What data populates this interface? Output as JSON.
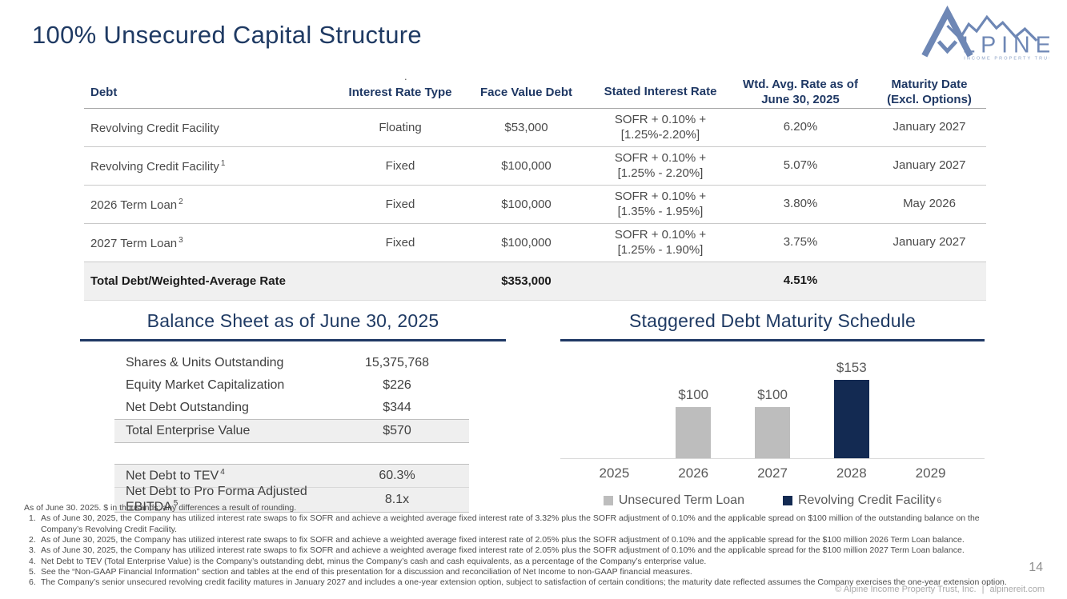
{
  "slide": {
    "title": "100% Unsecured Capital Structure",
    "page_number": "14",
    "copyright": "© Alpine Income Property Trust, Inc.",
    "copyright_divider": "|",
    "copyright_site": "alpinereit.com",
    "stray_dot": ".",
    "accent_color": "#1f3864"
  },
  "logo": {
    "wordmark": "LPINE",
    "tagline": "INCOME PROPERTY TRUST",
    "color": "#6e87b5"
  },
  "debt_table": {
    "headers": [
      {
        "line1": "Debt",
        "line2": ""
      },
      {
        "line1": "Interest Rate Type",
        "line2": ""
      },
      {
        "line1": "Face Value Debt",
        "line2": ""
      },
      {
        "line1": "Stated Interest Rate",
        "line2": ""
      },
      {
        "line1": "Wtd. Avg. Rate as of",
        "line2": "June 30, 2025"
      },
      {
        "line1": "Maturity Date",
        "line2": "(Excl. Options)"
      }
    ],
    "rows": [
      {
        "debt": "Revolving Credit Facility",
        "debt_sup": "",
        "rate_type": "Floating",
        "face_value": "$53,000",
        "stated_line1": "SOFR + 0.10% +",
        "stated_line2": "[1.25%-2.20%]",
        "wtd_avg": "6.20%",
        "maturity": "January 2027"
      },
      {
        "debt": "Revolving Credit Facility",
        "debt_sup": "1",
        "rate_type": "Fixed",
        "face_value": "$100,000",
        "stated_line1": "SOFR + 0.10% +",
        "stated_line2": "[1.25% - 2.20%]",
        "wtd_avg": "5.07%",
        "maturity": "January 2027"
      },
      {
        "debt": "2026 Term Loan",
        "debt_sup": "2",
        "rate_type": "Fixed",
        "face_value": "$100,000",
        "stated_line1": "SOFR + 0.10% +",
        "stated_line2": "[1.35% - 1.95%]",
        "wtd_avg": "3.80%",
        "maturity": "May 2026"
      },
      {
        "debt": "2027 Term Loan",
        "debt_sup": "3",
        "rate_type": "Fixed",
        "face_value": "$100,000",
        "stated_line1": "SOFR + 0.10% +",
        "stated_line2": "[1.25% - 1.90%]",
        "wtd_avg": "3.75%",
        "maturity": "January 2027"
      }
    ],
    "total_row": {
      "label": "Total Debt/Weighted-Average Rate",
      "face_value": "$353,000",
      "wtd_avg": "4.51%"
    }
  },
  "balance_sheet": {
    "title": "Balance Sheet as of June 30, 2025",
    "rows": [
      {
        "label": "Shares & Units Outstanding",
        "value": "15,375,768"
      },
      {
        "label": "Equity Market Capitalization",
        "value": "$226"
      },
      {
        "label": "Net Debt Outstanding",
        "value": "$344"
      },
      {
        "label": "Total Enterprise Value",
        "value": "$570"
      }
    ],
    "ratio_rows": [
      {
        "label": "Net Debt to TEV",
        "sup": "4",
        "value": "60.3%"
      },
      {
        "label": "Net Debt to Pro Forma Adjusted EBITDA",
        "sup": "5",
        "value": "8.1x"
      }
    ]
  },
  "chart_data": {
    "type": "bar",
    "title": "Staggered Debt Maturity Schedule",
    "xlabel": "",
    "ylabel": "",
    "categories": [
      "2025",
      "2026",
      "2027",
      "2028",
      "2029"
    ],
    "series": [
      {
        "name": "Unsecured Term Loan",
        "sup": "",
        "color": "#bdbdbd",
        "values": [
          0,
          100,
          100,
          0,
          0
        ]
      },
      {
        "name": "Revolving Credit Facility",
        "sup": "6",
        "color": "#132a52",
        "values": [
          0,
          0,
          0,
          153,
          0
        ]
      }
    ],
    "bar_labels": [
      "",
      "$100",
      "$100",
      "$153",
      ""
    ],
    "ylim": [
      0,
      165
    ],
    "grid": false,
    "legend_position": "bottom",
    "units": "$ in thousands (values shown in millions on chart labels)"
  },
  "footnotes": {
    "preamble": "As of June 30. 2025. $ in thousands; any differences a result of rounding.",
    "items": [
      {
        "num": "1.",
        "text": "As of June 30, 2025, the Company has utilized interest rate swaps to fix SOFR and achieve a weighted average fixed interest rate of 3.32% plus the SOFR adjustment of 0.10% and the applicable spread on $100 million of the outstanding balance on the Company’s Revolving Credit Facility."
      },
      {
        "num": "2.",
        "text": "As of June 30, 2025, the Company has utilized interest rate swaps to fix SOFR and achieve a weighted average fixed interest rate of 2.05% plus the SOFR adjustment of 0.10% and the applicable spread for the $100 million 2026 Term Loan balance."
      },
      {
        "num": "3.",
        "text": "As of June 30, 2025, the Company has utilized interest rate swaps to fix SOFR and achieve a weighted average fixed interest rate of 2.05% plus the SOFR adjustment of 0.10% and the applicable spread for the $100 million 2027 Term Loan balance."
      },
      {
        "num": "4.",
        "text": "Net Debt to TEV (Total Enterprise Value) is the Company’s outstanding debt, minus the Company’s cash and cash equivalents, as a percentage of the Company’s enterprise value."
      },
      {
        "num": "5.",
        "text": "See the “Non-GAAP Financial Information” section and tables at the end of this presentation for a discussion and reconciliation of Net Income to non-GAAP financial measures."
      },
      {
        "num": "6.",
        "text": "The Company’s senior unsecured revolving credit facility matures in January 2027 and includes a one-year extension option, subject to satisfaction of certain conditions; the maturity date reflected assumes the Company exercises the one-year extension option."
      }
    ]
  }
}
